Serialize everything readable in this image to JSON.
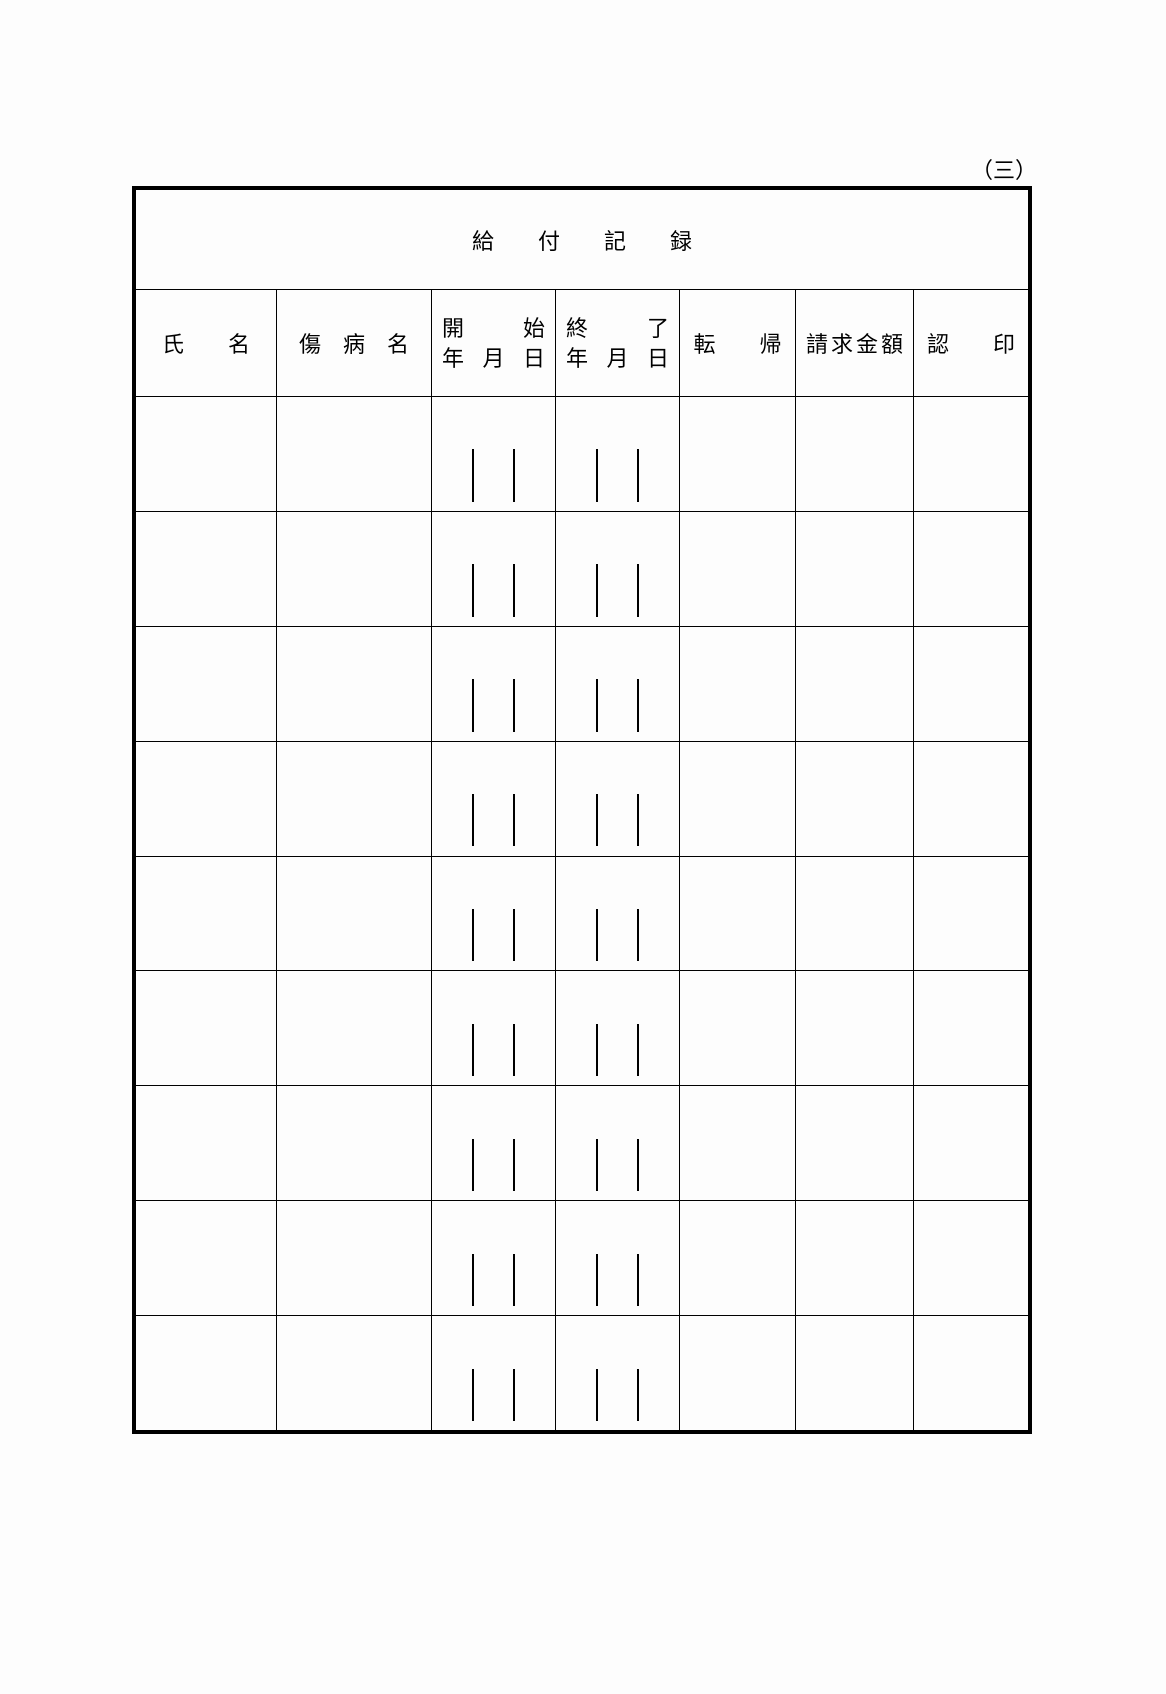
{
  "page": {
    "corner_label": "（三）",
    "background_color": "#fdfdfd",
    "line_color": "#000000"
  },
  "table": {
    "title": "給　　付　　記　　録",
    "header": {
      "name": "氏　　名",
      "disease": "傷　病　名",
      "start": {
        "top": [
          "開",
          "始"
        ],
        "bottom": [
          "年",
          "月",
          "日"
        ]
      },
      "end": {
        "top": [
          "終",
          "了"
        ],
        "bottom": [
          "年",
          "月",
          "日"
        ]
      },
      "outcome": "転　　帰",
      "amount": "請求金額",
      "seal": "認　　印"
    },
    "row_count": 9,
    "rows": [
      {
        "name": "",
        "disease": "",
        "start": "",
        "end": "",
        "outcome": "",
        "amount": "",
        "seal": ""
      },
      {
        "name": "",
        "disease": "",
        "start": "",
        "end": "",
        "outcome": "",
        "amount": "",
        "seal": ""
      },
      {
        "name": "",
        "disease": "",
        "start": "",
        "end": "",
        "outcome": "",
        "amount": "",
        "seal": ""
      },
      {
        "name": "",
        "disease": "",
        "start": "",
        "end": "",
        "outcome": "",
        "amount": "",
        "seal": ""
      },
      {
        "name": "",
        "disease": "",
        "start": "",
        "end": "",
        "outcome": "",
        "amount": "",
        "seal": ""
      },
      {
        "name": "",
        "disease": "",
        "start": "",
        "end": "",
        "outcome": "",
        "amount": "",
        "seal": ""
      },
      {
        "name": "",
        "disease": "",
        "start": "",
        "end": "",
        "outcome": "",
        "amount": "",
        "seal": ""
      },
      {
        "name": "",
        "disease": "",
        "start": "",
        "end": "",
        "outcome": "",
        "amount": "",
        "seal": ""
      },
      {
        "name": "",
        "disease": "",
        "start": "",
        "end": "",
        "outcome": "",
        "amount": "",
        "seal": ""
      }
    ]
  }
}
